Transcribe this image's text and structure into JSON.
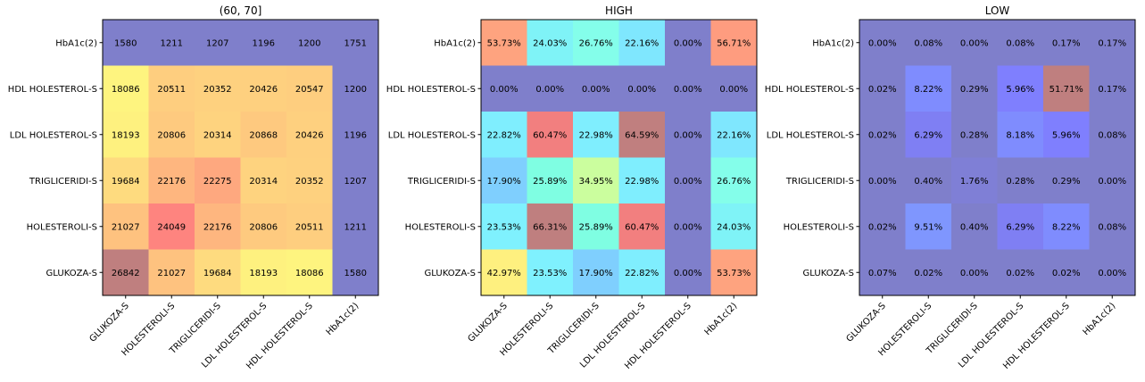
{
  "chart_data": [
    {
      "type": "heatmap",
      "title": "(60, 70]",
      "x_categories": [
        "GLUKOZA-S",
        "HOLESTEROLI-S",
        "TRIGLICERIDI-S",
        "LDL HOLESTEROL-S",
        "HDL HOLESTEROL-S",
        "HbA1c(2)"
      ],
      "y_categories": [
        "HbA1c(2)",
        "HDL HOLESTEROL-S",
        "LDL HOLESTEROL-S",
        "TRIGLICERIDI-S",
        "HOLESTEROLI-S",
        "GLUKOZA-S"
      ],
      "values": [
        [
          1580,
          1211,
          1207,
          1196,
          1200,
          1751
        ],
        [
          18086,
          20511,
          20352,
          20426,
          20547,
          1200
        ],
        [
          18193,
          20806,
          20314,
          20868,
          20426,
          1196
        ],
        [
          19684,
          22176,
          22275,
          20314,
          20352,
          1207
        ],
        [
          21027,
          24049,
          22176,
          20806,
          20511,
          1211
        ],
        [
          26842,
          21027,
          19684,
          18193,
          18086,
          1580
        ]
      ],
      "labels": [
        [
          "1580",
          "1211",
          "1207",
          "1196",
          "1200",
          "1751"
        ],
        [
          "18086",
          "20511",
          "20352",
          "20426",
          "20547",
          "1200"
        ],
        [
          "18193",
          "20806",
          "20314",
          "20868",
          "20426",
          "1196"
        ],
        [
          "19684",
          "22176",
          "22275",
          "20314",
          "20352",
          "1207"
        ],
        [
          "21027",
          "24049",
          "22176",
          "20806",
          "20511",
          "1211"
        ],
        [
          "26842",
          "21027",
          "19684",
          "18193",
          "18086",
          "1580"
        ]
      ],
      "colors": [
        [
          "#7f7fcb",
          "#7f7fcb",
          "#7f7fcb",
          "#7f7fcb",
          "#7f7fcb",
          "#7f7fcb"
        ],
        [
          "#fef47f",
          "#fece7f",
          "#fed17f",
          "#fed07f",
          "#fece7f",
          "#7f7fcb"
        ],
        [
          "#fef17f",
          "#feca7f",
          "#fed37f",
          "#fec97f",
          "#fed07f",
          "#7f7fcb"
        ],
        [
          "#fedb7f",
          "#feb67f",
          "#fea87f",
          "#fed37f",
          "#fed17f",
          "#7f7fcb"
        ],
        [
          "#fec27f",
          "#fe847f",
          "#feb67f",
          "#feca7f",
          "#fece7f",
          "#7f7fcb"
        ],
        [
          "#bf7f7f",
          "#fec27f",
          "#fedb7f",
          "#fef17f",
          "#fef47f",
          "#7f7fcb"
        ]
      ]
    },
    {
      "type": "heatmap",
      "title": "HIGH",
      "x_categories": [
        "GLUKOZA-S",
        "HOLESTEROLI-S",
        "TRIGLICERIDI-S",
        "LDL HOLESTEROL-S",
        "HDL HOLESTEROL-S",
        "HbA1c(2)"
      ],
      "y_categories": [
        "HbA1c(2)",
        "HDL HOLESTEROL-S",
        "LDL HOLESTEROL-S",
        "TRIGLICERIDI-S",
        "HOLESTEROLI-S",
        "GLUKOZA-S"
      ],
      "values": [
        [
          53.73,
          24.03,
          26.76,
          22.16,
          0.0,
          56.71
        ],
        [
          0.0,
          0.0,
          0.0,
          0.0,
          0.0,
          0.0
        ],
        [
          22.82,
          60.47,
          22.98,
          64.59,
          0.0,
          22.16
        ],
        [
          17.9,
          25.89,
          34.95,
          22.98,
          0.0,
          26.76
        ],
        [
          23.53,
          66.31,
          25.89,
          60.47,
          0.0,
          24.03
        ],
        [
          42.97,
          23.53,
          17.9,
          22.82,
          0.0,
          53.73
        ]
      ],
      "labels": [
        [
          "53.73%",
          "24.03%",
          "26.76%",
          "22.16%",
          "0.00%",
          "56.71%"
        ],
        [
          "0.00%",
          "0.00%",
          "0.00%",
          "0.00%",
          "0.00%",
          "0.00%"
        ],
        [
          "22.82%",
          "60.47%",
          "22.98%",
          "64.59%",
          "0.00%",
          "22.16%"
        ],
        [
          "17.90%",
          "25.89%",
          "34.95%",
          "22.98%",
          "0.00%",
          "26.76%"
        ],
        [
          "23.53%",
          "66.31%",
          "25.89%",
          "60.47%",
          "0.00%",
          "24.03%"
        ],
        [
          "42.97%",
          "23.53%",
          "17.90%",
          "22.82%",
          "0.00%",
          "53.73%"
        ]
      ],
      "colors": [
        [
          "#fea37f",
          "#7ff3f7",
          "#84feea",
          "#7fe7fe",
          "#7f7fcb",
          "#fe9c7f"
        ],
        [
          "#7f7fcb",
          "#7f7fcb",
          "#7f7fcb",
          "#7f7fcb",
          "#7f7fcb",
          "#7f7fcb"
        ],
        [
          "#7feefe",
          "#f27f7f",
          "#7feefe",
          "#c07f7f",
          "#7f7fcb",
          "#7fe7fe"
        ],
        [
          "#7fcffe",
          "#7ffee2",
          "#cbfe9e",
          "#7feefe",
          "#7f7fcb",
          "#84feea"
        ],
        [
          "#7ff1fe",
          "#bf7f7f",
          "#7ffee2",
          "#f27f7f",
          "#7f7fcb",
          "#7ff3f7"
        ],
        [
          "#fef07f",
          "#7ff1fe",
          "#7fcffe",
          "#7feefe",
          "#7f7fcb",
          "#fea37f"
        ]
      ]
    },
    {
      "type": "heatmap",
      "title": "LOW",
      "x_categories": [
        "GLUKOZA-S",
        "HOLESTEROLI-S",
        "TRIGLICERIDI-S",
        "LDL HOLESTEROL-S",
        "HDL HOLESTEROL-S",
        "HbA1c(2)"
      ],
      "y_categories": [
        "HbA1c(2)",
        "HDL HOLESTEROL-S",
        "LDL HOLESTEROL-S",
        "TRIGLICERIDI-S",
        "HOLESTEROLI-S",
        "GLUKOZA-S"
      ],
      "values": [
        [
          0.0,
          0.08,
          0.0,
          0.08,
          0.17,
          0.17
        ],
        [
          0.02,
          8.22,
          0.29,
          5.96,
          51.71,
          0.17
        ],
        [
          0.02,
          6.29,
          0.28,
          8.18,
          5.96,
          0.08
        ],
        [
          0.0,
          0.4,
          1.76,
          0.28,
          0.29,
          0.0
        ],
        [
          0.02,
          9.51,
          0.4,
          6.29,
          8.22,
          0.08
        ],
        [
          0.07,
          0.02,
          0.0,
          0.02,
          0.02,
          0.0
        ]
      ],
      "labels": [
        [
          "0.00%",
          "0.08%",
          "0.00%",
          "0.08%",
          "0.17%",
          "0.17%"
        ],
        [
          "0.02%",
          "8.22%",
          "0.29%",
          "5.96%",
          "51.71%",
          "0.17%"
        ],
        [
          "0.02%",
          "6.29%",
          "0.28%",
          "8.18%",
          "5.96%",
          "0.08%"
        ],
        [
          "0.00%",
          "0.40%",
          "1.76%",
          "0.28%",
          "0.29%",
          "0.00%"
        ],
        [
          "0.02%",
          "9.51%",
          "0.40%",
          "6.29%",
          "8.22%",
          "0.08%"
        ],
        [
          "0.07%",
          "0.02%",
          "0.00%",
          "0.02%",
          "0.02%",
          "0.00%"
        ]
      ],
      "colors": [
        [
          "#7f7fcb",
          "#7f7fcb",
          "#7f7fcb",
          "#7f7fcb",
          "#7f7fcb",
          "#7f7fcb"
        ],
        [
          "#7f7fcb",
          "#7f8cfe",
          "#7f7fcb",
          "#7f7ffe",
          "#bf7f7f",
          "#7f7fcb"
        ],
        [
          "#7f7fcb",
          "#7f7ff3",
          "#7f7fcb",
          "#7f8cfe",
          "#7f7ffe",
          "#7f7fcb"
        ],
        [
          "#7f7fcb",
          "#7f7fcb",
          "#7f7fd6",
          "#7f7fcb",
          "#7f7fcb",
          "#7f7fcb"
        ],
        [
          "#7f7fcb",
          "#7f96fe",
          "#7f7fcb",
          "#7f7ff3",
          "#7f8cfe",
          "#7f7fcb"
        ],
        [
          "#7f7fcb",
          "#7f7fcb",
          "#7f7fcb",
          "#7f7fcb",
          "#7f7fcb",
          "#7f7fcb"
        ]
      ]
    }
  ]
}
